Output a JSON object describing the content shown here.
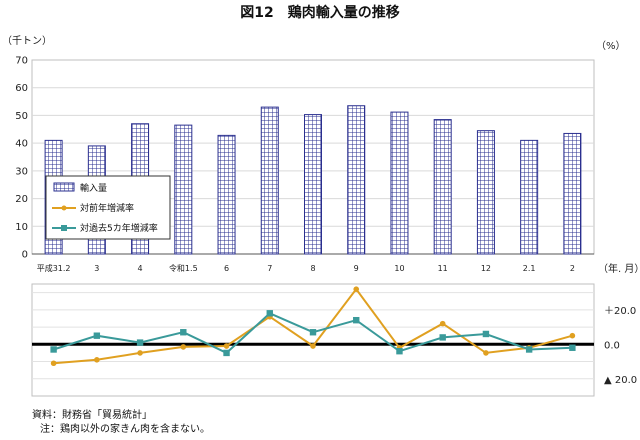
{
  "chart_data": {
    "title": "図12　鶏肉輸入量の推移",
    "categories": [
      "平成31.2",
      "3",
      "4",
      "令和1.5",
      "6",
      "7",
      "8",
      "9",
      "10",
      "11",
      "12",
      "2.1",
      "2"
    ],
    "left_unit": "（千トン）",
    "right_unit": "（%）",
    "x_unit": "（年. 月）",
    "bars": {
      "type": "bar",
      "name": "輸入量",
      "values": [
        41.0,
        39.0,
        47.0,
        46.5,
        42.8,
        53.0,
        50.3,
        53.5,
        51.2,
        48.5,
        44.5,
        41.0,
        43.5
      ],
      "ylim": [
        0,
        70
      ],
      "yticks": [
        "0",
        "10",
        "20",
        "30",
        "40",
        "50",
        "60",
        "70"
      ],
      "yticks_values": [
        0,
        10,
        20,
        30,
        40,
        50,
        60,
        70
      ],
      "color": "#2a2f8f"
    },
    "lines": {
      "type": "line",
      "ylim": [
        -30,
        35
      ],
      "yticks": [
        {
          "label": "＋20.0",
          "value": 20
        },
        {
          "label": "0.0",
          "value": 0
        },
        {
          "label": "▲ 20.0",
          "value": -20
        }
      ],
      "series": [
        {
          "name": "対前年増減率",
          "color": "#e0a020",
          "marker": "circle",
          "values": [
            -11.0,
            -9.0,
            -5.0,
            -1.5,
            -1.0,
            16.0,
            -1.0,
            32.0,
            -2.0,
            12.0,
            -5.0,
            -2.0,
            5.0
          ]
        },
        {
          "name": "対過去5カ年増減率",
          "color": "#3a9a9a",
          "marker": "square",
          "values": [
            -3.0,
            5.0,
            1.0,
            7.0,
            -5.0,
            18.0,
            7.0,
            14.0,
            -4.0,
            4.0,
            6.0,
            -3.0,
            -2.0
          ]
        }
      ]
    }
  },
  "legend": {
    "bars_label": "輸入量",
    "line1_label": "対前年増減率",
    "line2_label": "対過去5カ年増減率"
  },
  "footer": {
    "source": "資料：財務省「貿易統計」",
    "note": "注：鶏肉以外の家きん肉を含まない。"
  }
}
